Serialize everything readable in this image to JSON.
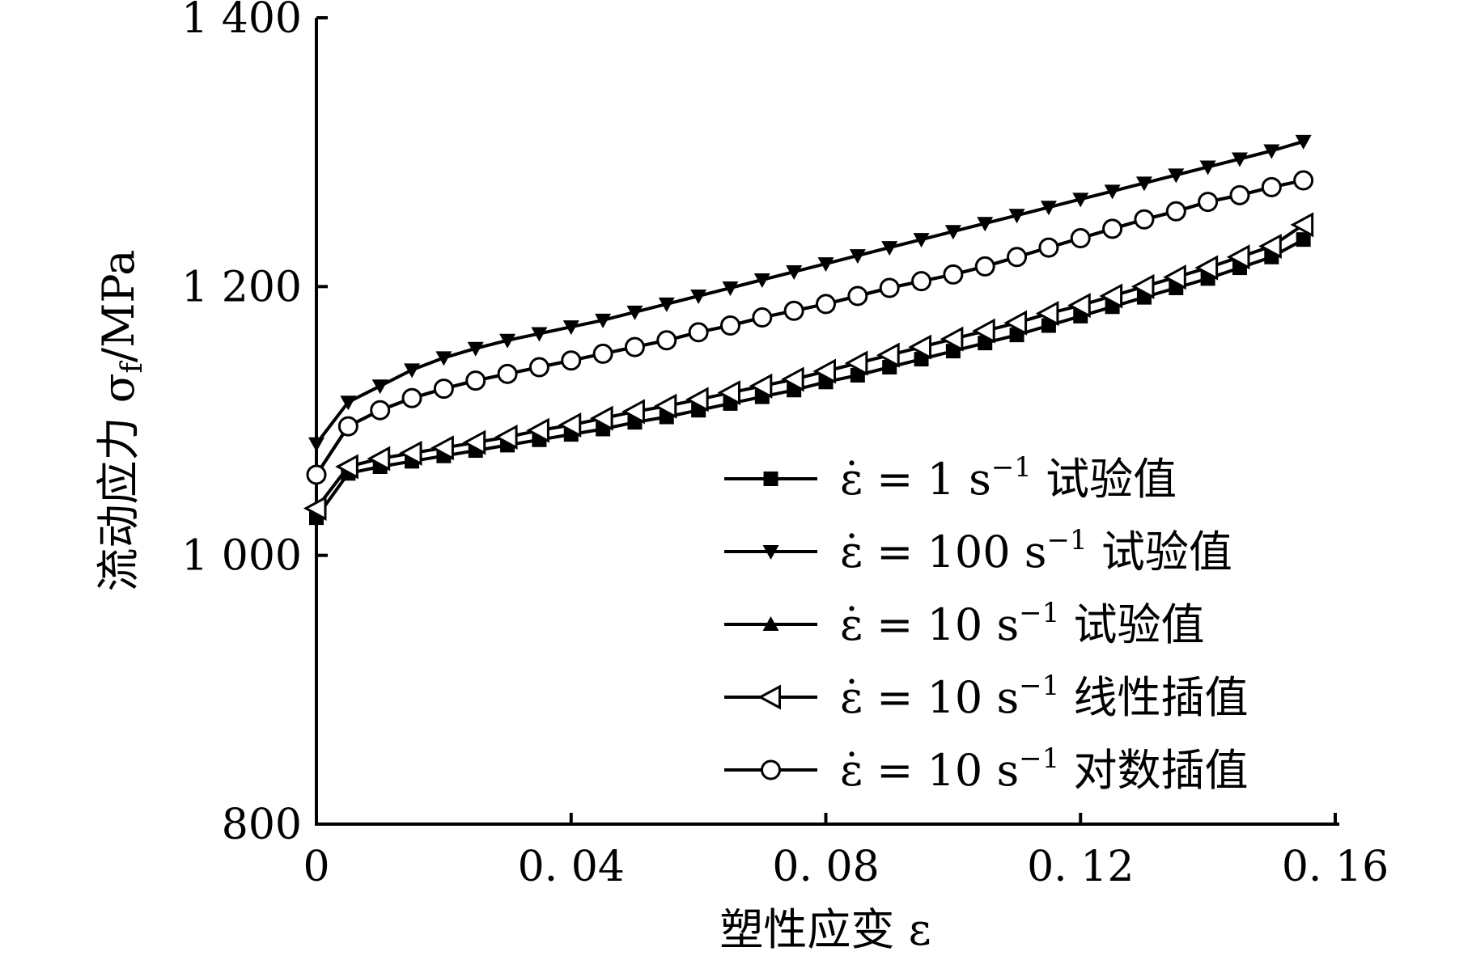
{
  "chart_data": {
    "type": "line",
    "xlabel": "塑性应变 ε",
    "ylabel": "流动应力 σ_f /MPa",
    "ylabel_main": "流动应力 σ",
    "ylabel_sub": "f",
    "ylabel_unit": "/MPa",
    "xlim": [
      0,
      0.16
    ],
    "ylim": [
      800,
      1400
    ],
    "x_ticks": [
      0,
      0.04,
      0.08,
      0.12,
      0.16
    ],
    "x_tick_labels": [
      "0",
      "0. 04",
      "0. 08",
      "0. 12",
      "0. 16"
    ],
    "y_ticks": [
      800,
      1000,
      1200,
      1400
    ],
    "y_tick_labels": [
      "800",
      "1 000",
      "1 200",
      "1 400"
    ],
    "grid": false,
    "legend_position": "bottom-right",
    "x": [
      0,
      0.005,
      0.01,
      0.015,
      0.02,
      0.025,
      0.03,
      0.035,
      0.04,
      0.045,
      0.05,
      0.055,
      0.06,
      0.065,
      0.07,
      0.075,
      0.08,
      0.085,
      0.09,
      0.095,
      0.1,
      0.105,
      0.11,
      0.115,
      0.12,
      0.125,
      0.13,
      0.135,
      0.14,
      0.145,
      0.15,
      0.155
    ],
    "series": [
      {
        "name": "1 s⁻¹ 试验值",
        "marker": "square-filled",
        "values": [
          1028,
          1061,
          1066,
          1070,
          1074,
          1078,
          1082,
          1086,
          1090,
          1094,
          1099,
          1103,
          1108,
          1113,
          1118,
          1123,
          1129,
          1134,
          1140,
          1146,
          1152,
          1158,
          1164,
          1171,
          1178,
          1185,
          1192,
          1199,
          1206,
          1214,
          1222,
          1235
        ]
      },
      {
        "name": "100 s⁻¹ 试验值",
        "marker": "triangle-down-filled",
        "values": [
          1083,
          1114,
          1126,
          1138,
          1147,
          1154,
          1160,
          1165,
          1170,
          1175,
          1181,
          1187,
          1193,
          1199,
          1205,
          1211,
          1217,
          1223,
          1229,
          1235,
          1241,
          1247,
          1253,
          1259,
          1265,
          1271,
          1277,
          1283,
          1289,
          1295,
          1301,
          1308
        ]
      },
      {
        "name": "10 s⁻¹ 试验值",
        "marker": "triangle-up-filled",
        "values": [
          1060,
          1096,
          1108,
          1117,
          1124,
          1130,
          1135,
          1140,
          1145,
          1150,
          1155,
          1160,
          1166,
          1171,
          1177,
          1182,
          1187,
          1193,
          1199,
          1204,
          1209,
          1215,
          1222,
          1229,
          1236,
          1243,
          1250,
          1256,
          1263,
          1268,
          1274,
          1279
        ]
      },
      {
        "name": "10 s⁻¹ 线性插值",
        "marker": "triangle-left-open",
        "values": [
          1035,
          1066,
          1072,
          1076,
          1080,
          1084,
          1088,
          1093,
          1097,
          1102,
          1107,
          1111,
          1116,
          1121,
          1126,
          1131,
          1137,
          1143,
          1149,
          1155,
          1161,
          1167,
          1173,
          1180,
          1186,
          1193,
          1200,
          1207,
          1214,
          1222,
          1230,
          1246
        ]
      },
      {
        "name": "10 s⁻¹ 对数插值",
        "marker": "circle-open",
        "values": [
          1060,
          1096,
          1108,
          1117,
          1124,
          1130,
          1135,
          1140,
          1145,
          1150,
          1155,
          1160,
          1166,
          1171,
          1177,
          1182,
          1187,
          1193,
          1199,
          1204,
          1209,
          1215,
          1222,
          1229,
          1236,
          1243,
          1250,
          1256,
          1263,
          1268,
          1274,
          1279
        ]
      }
    ],
    "legend": [
      {
        "prefix": "ε̇ = ",
        "rate": "1",
        "unit": " s",
        "sup": "−1",
        "desc": " 试验值",
        "marker": "square-filled"
      },
      {
        "prefix": "ε̇ = ",
        "rate": "100",
        "unit": " s",
        "sup": "−1",
        "desc": " 试验值",
        "marker": "triangle-down-filled"
      },
      {
        "prefix": "ε̇ = ",
        "rate": "10",
        "unit": " s",
        "sup": "−1",
        "desc": " 试验值",
        "marker": "triangle-up-filled"
      },
      {
        "prefix": "ε̇ = ",
        "rate": "10",
        "unit": " s",
        "sup": "−1",
        "desc": " 线性插值",
        "marker": "triangle-left-open"
      },
      {
        "prefix": "ε̇ = ",
        "rate": "10",
        "unit": " s",
        "sup": "−1",
        "desc": " 对数插值",
        "marker": "circle-open"
      }
    ]
  }
}
